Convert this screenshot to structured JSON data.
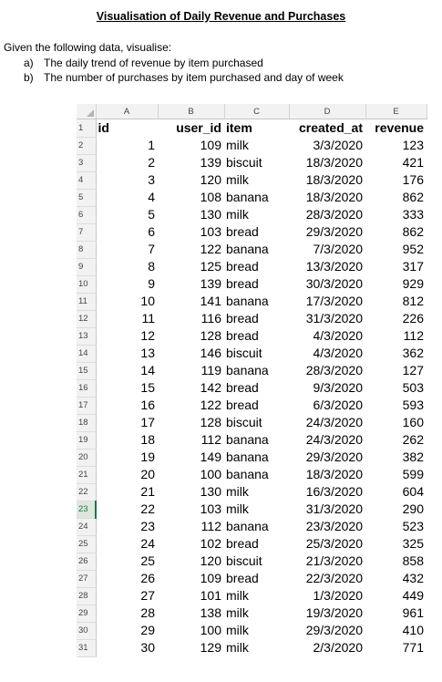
{
  "title": "Visualisation of Daily Revenue and Purchases",
  "intro": "Given the following data, visualise:",
  "tasks": [
    {
      "marker": "a)",
      "text": "The daily trend of revenue by item purchased"
    },
    {
      "marker": "b)",
      "text": "The number of purchases by item purchased and day of week"
    }
  ],
  "sheet": {
    "column_letters": [
      "A",
      "B",
      "C",
      "D",
      "E"
    ],
    "headers": [
      "id",
      "user_id",
      "item",
      "created_at",
      "revenue"
    ],
    "selected_row": 23,
    "rows": [
      [
        "1",
        "109",
        "milk",
        "3/3/2020",
        "123"
      ],
      [
        "2",
        "139",
        "biscuit",
        "18/3/2020",
        "421"
      ],
      [
        "3",
        "120",
        "milk",
        "18/3/2020",
        "176"
      ],
      [
        "4",
        "108",
        "banana",
        "18/3/2020",
        "862"
      ],
      [
        "5",
        "130",
        "milk",
        "28/3/2020",
        "333"
      ],
      [
        "6",
        "103",
        "bread",
        "29/3/2020",
        "862"
      ],
      [
        "7",
        "122",
        "banana",
        "7/3/2020",
        "952"
      ],
      [
        "8",
        "125",
        "bread",
        "13/3/2020",
        "317"
      ],
      [
        "9",
        "139",
        "bread",
        "30/3/2020",
        "929"
      ],
      [
        "10",
        "141",
        "banana",
        "17/3/2020",
        "812"
      ],
      [
        "11",
        "116",
        "bread",
        "31/3/2020",
        "226"
      ],
      [
        "12",
        "128",
        "bread",
        "4/3/2020",
        "112"
      ],
      [
        "13",
        "146",
        "biscuit",
        "4/3/2020",
        "362"
      ],
      [
        "14",
        "119",
        "banana",
        "28/3/2020",
        "127"
      ],
      [
        "15",
        "142",
        "bread",
        "9/3/2020",
        "503"
      ],
      [
        "16",
        "122",
        "bread",
        "6/3/2020",
        "593"
      ],
      [
        "17",
        "128",
        "biscuit",
        "24/3/2020",
        "160"
      ],
      [
        "18",
        "112",
        "banana",
        "24/3/2020",
        "262"
      ],
      [
        "19",
        "149",
        "banana",
        "29/3/2020",
        "382"
      ],
      [
        "20",
        "100",
        "banana",
        "18/3/2020",
        "599"
      ],
      [
        "21",
        "130",
        "milk",
        "16/3/2020",
        "604"
      ],
      [
        "22",
        "103",
        "milk",
        "31/3/2020",
        "290"
      ],
      [
        "23",
        "112",
        "banana",
        "23/3/2020",
        "523"
      ],
      [
        "24",
        "102",
        "bread",
        "25/3/2020",
        "325"
      ],
      [
        "25",
        "120",
        "biscuit",
        "21/3/2020",
        "858"
      ],
      [
        "26",
        "109",
        "bread",
        "22/3/2020",
        "432"
      ],
      [
        "27",
        "101",
        "milk",
        "1/3/2020",
        "449"
      ],
      [
        "28",
        "138",
        "milk",
        "19/3/2020",
        "961"
      ],
      [
        "29",
        "100",
        "milk",
        "29/3/2020",
        "410"
      ],
      [
        "30",
        "129",
        "milk",
        "2/3/2020",
        "771"
      ]
    ]
  }
}
